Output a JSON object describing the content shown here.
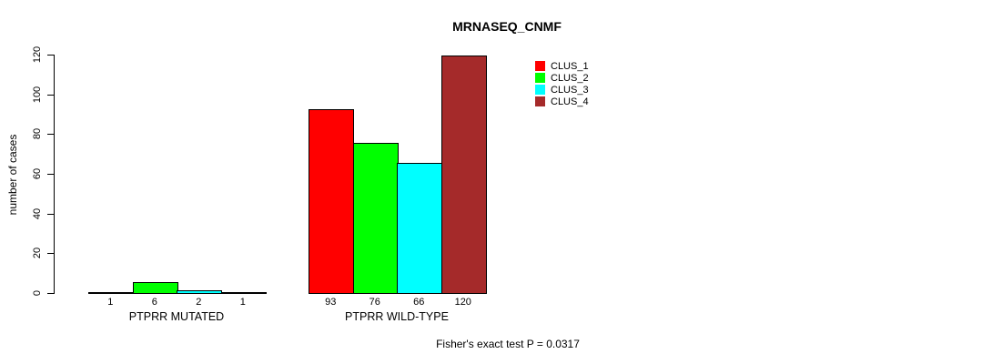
{
  "figure": {
    "title": "MRNASEQ_CNMF",
    "annotation": "Fisher's exact test P = 0.0317"
  },
  "chart_data": {
    "type": "bar",
    "title": "MRNASEQ_CNMF",
    "xlabel": "",
    "ylabel": "number of cases",
    "ylim": [
      0,
      120
    ],
    "yticks": [
      0,
      20,
      40,
      60,
      80,
      100,
      120
    ],
    "grid": false,
    "legend_position": "top-right",
    "categories": [
      "PTPRR MUTATED",
      "PTPRR WILD-TYPE"
    ],
    "series": [
      {
        "name": "CLUS_1",
        "color": "#ff0000",
        "values": [
          1,
          93
        ]
      },
      {
        "name": "CLUS_2",
        "color": "#00ff00",
        "values": [
          6,
          76
        ]
      },
      {
        "name": "CLUS_3",
        "color": "#00ffff",
        "values": [
          2,
          66
        ]
      },
      {
        "name": "CLUS_4",
        "color": "#a52a2a",
        "values": [
          1,
          120
        ]
      }
    ],
    "bar_value_labels": [
      [
        1,
        6,
        2,
        1
      ],
      [
        93,
        76,
        66,
        120
      ]
    ],
    "annotation": "Fisher's exact test P = 0.0317"
  }
}
